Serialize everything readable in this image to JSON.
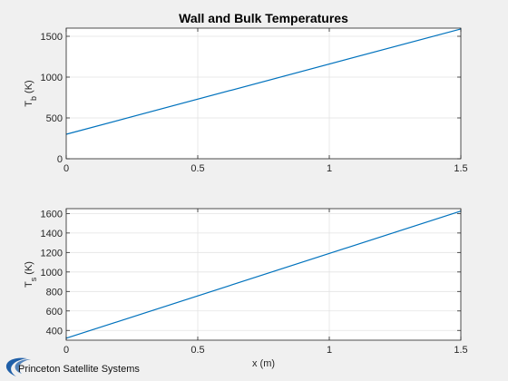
{
  "chart_data": [
    {
      "type": "line",
      "title": "Wall and Bulk Temperatures",
      "xlabel": "",
      "ylabel_main": "T",
      "ylabel_sub": "b",
      "ylabel_unit": "(K)",
      "xlim": [
        0,
        1.5
      ],
      "ylim": [
        0,
        1600
      ],
      "xticks": [
        0,
        0.5,
        1,
        1.5
      ],
      "xtick_labels": [
        "0",
        "0.5",
        "1",
        "1.5"
      ],
      "yticks": [
        0,
        500,
        1000,
        1500
      ],
      "ytick_labels": [
        "0",
        "500",
        "1000",
        "1500"
      ],
      "grid": true,
      "series": [
        {
          "x": [
            0,
            1.5
          ],
          "values": [
            300,
            1590
          ],
          "color": "#0072bd"
        }
      ]
    },
    {
      "type": "line",
      "title": "",
      "xlabel": "x (m)",
      "ylabel_main": "T",
      "ylabel_sub": "s",
      "ylabel_unit": "(K)",
      "xlim": [
        0,
        1.5
      ],
      "ylim": [
        300,
        1650
      ],
      "xticks": [
        0,
        0.5,
        1,
        1.5
      ],
      "xtick_labels": [
        "0",
        "0.5",
        "1",
        "1.5"
      ],
      "yticks": [
        400,
        600,
        800,
        1000,
        1200,
        1400,
        1600
      ],
      "ytick_labels": [
        "400",
        "600",
        "800",
        "1000",
        "1200",
        "1400",
        "1600"
      ],
      "grid": true,
      "series": [
        {
          "x": [
            0,
            1.5
          ],
          "values": [
            320,
            1625
          ],
          "color": "#0072bd"
        }
      ]
    }
  ],
  "logo": {
    "text": "Princeton Satellite Systems",
    "color": "#1f5fa8"
  }
}
